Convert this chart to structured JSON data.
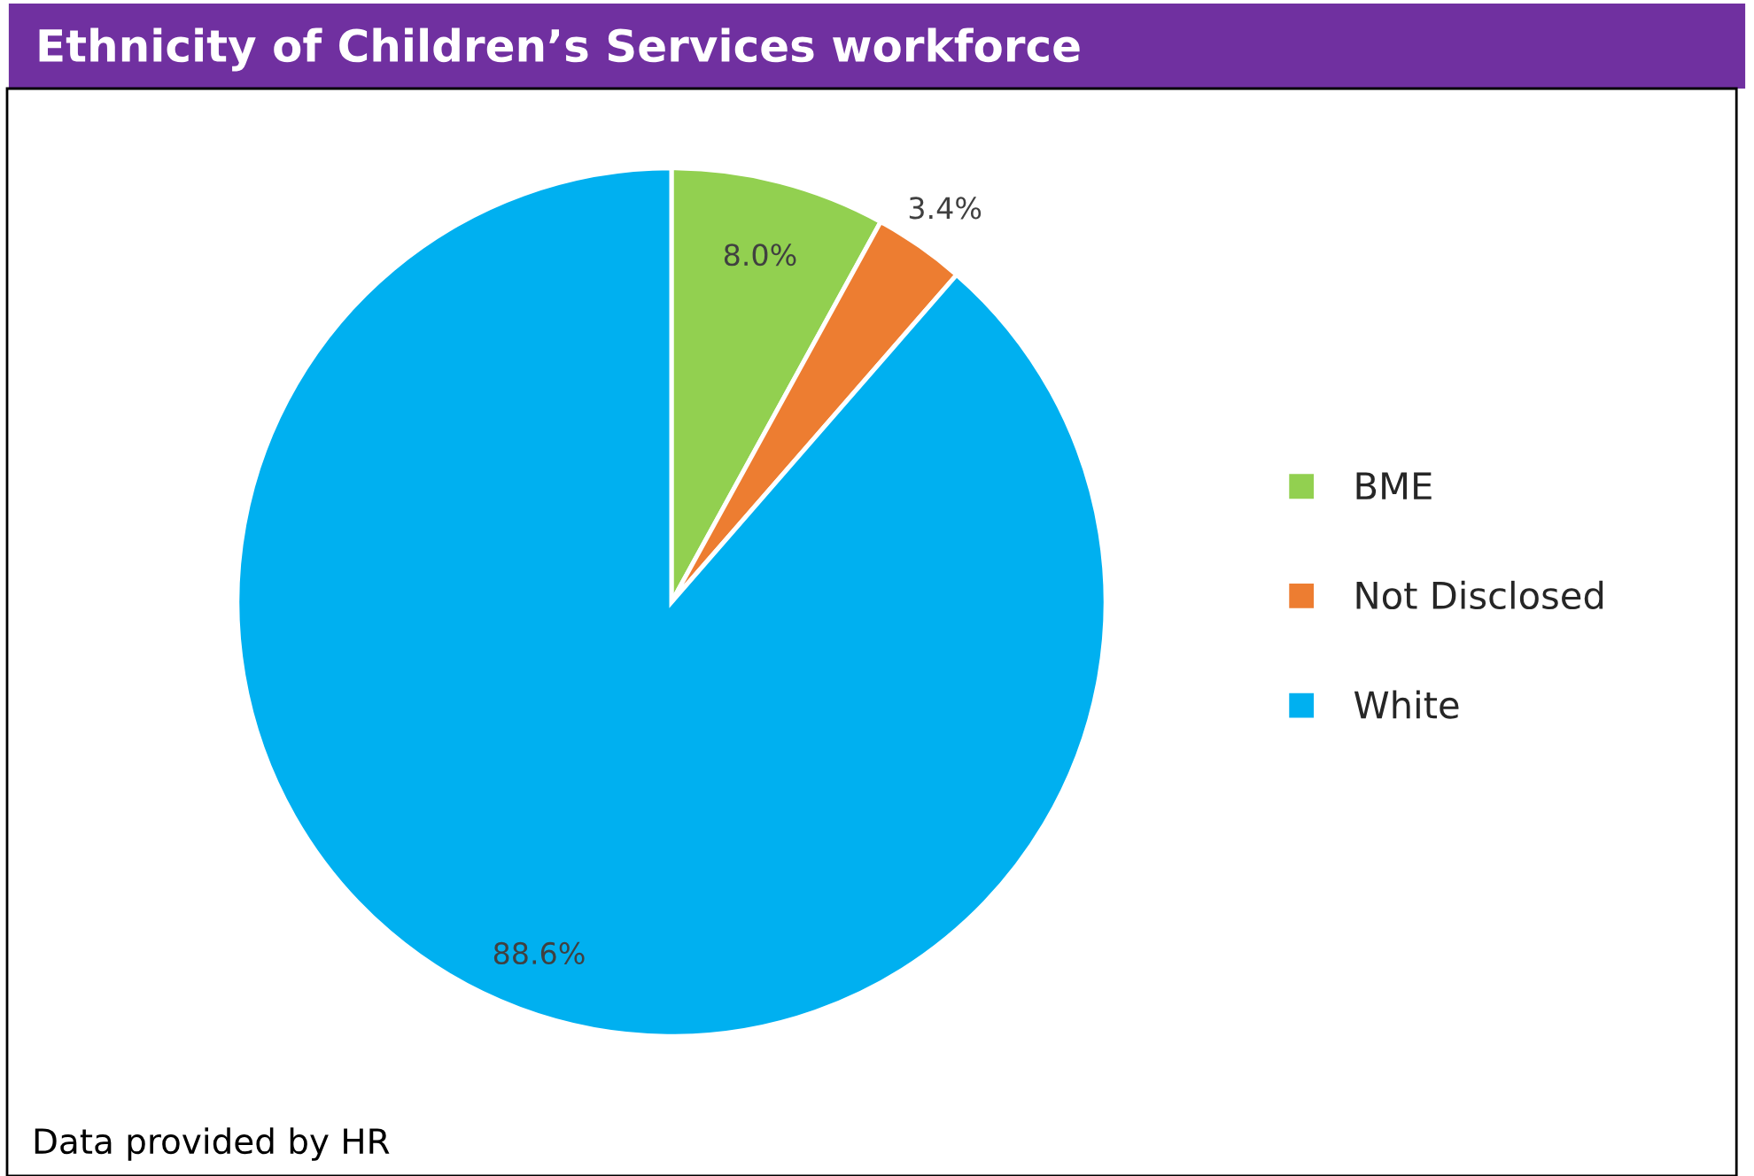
{
  "chart_data": {
    "type": "pie",
    "title": "Ethnicity of Children’s Services workforce",
    "categories": [
      "BME",
      "Not Disclosed",
      "White"
    ],
    "values": [
      8.0,
      3.4,
      88.6
    ],
    "colors": [
      "#92d050",
      "#ed7d31",
      "#00b0f0"
    ],
    "value_labels": [
      "8.0%",
      "3.4%",
      "88.6%"
    ],
    "legend": "right",
    "annotations": [
      "Data provided by HR"
    ]
  }
}
